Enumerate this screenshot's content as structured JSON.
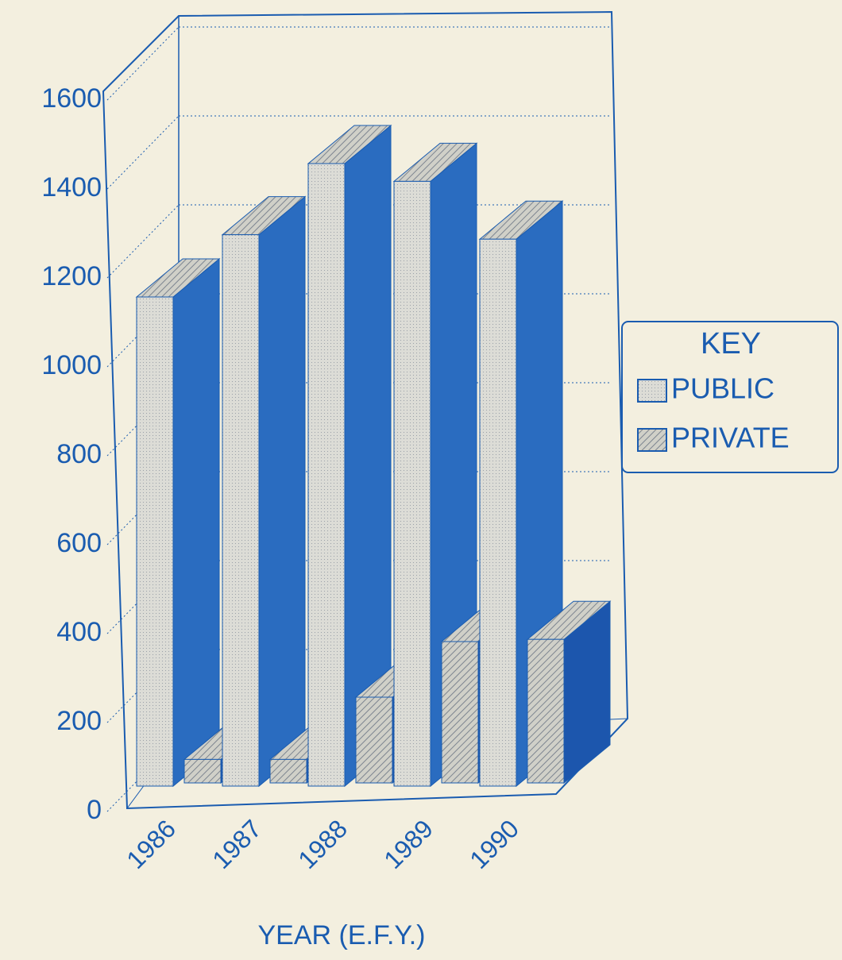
{
  "chart_data": {
    "type": "bar3d",
    "x_label": "YEAR (E.F.Y.)",
    "legend_title": "KEY",
    "categories": [
      "1986",
      "1987",
      "1988",
      "1989",
      "1990"
    ],
    "series": [
      {
        "name": "PUBLIC",
        "color": "#d9d9d2",
        "values": [
          1100,
          1240,
          1400,
          1360,
          1230
        ]
      },
      {
        "name": "PRIVATE",
        "color": "#c8c8c0",
        "values": [
          60,
          60,
          200,
          325,
          330
        ]
      }
    ],
    "ylim": [
      0,
      1600
    ],
    "yticks": [
      0,
      200,
      400,
      600,
      800,
      1000,
      1200,
      1400,
      1600
    ],
    "grid": true,
    "legend": "right"
  }
}
